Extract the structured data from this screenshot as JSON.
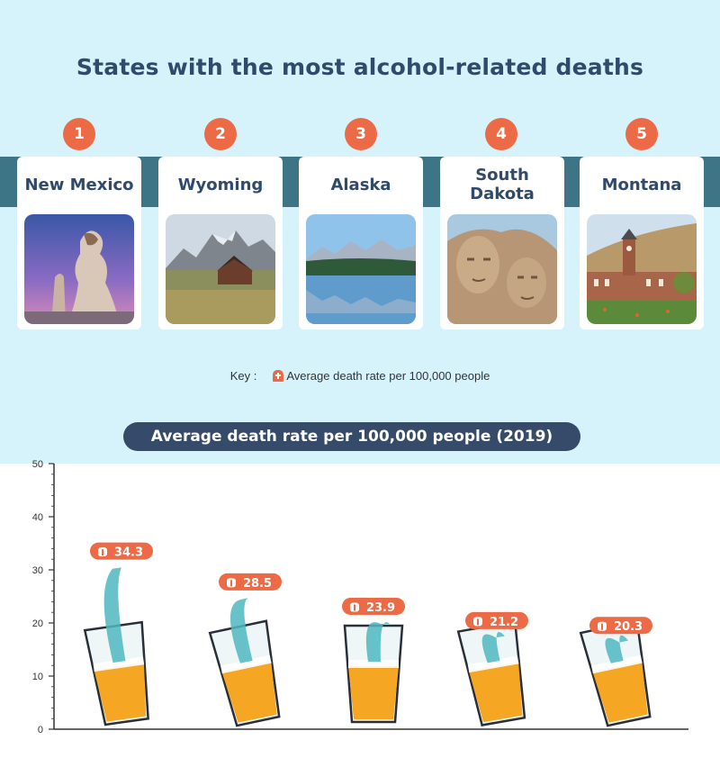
{
  "title": "States with the most alcohol-related deaths",
  "states": [
    {
      "rank": "1",
      "name": "New Mexico",
      "photo": "rock-formation-photo"
    },
    {
      "rank": "2",
      "name": "Wyoming",
      "photo": "barn-mountains-photo"
    },
    {
      "rank": "3",
      "name": "Alaska",
      "photo": "lake-reflection-photo"
    },
    {
      "rank": "4",
      "name": "South Dakota",
      "photo": "mount-rushmore-photo"
    },
    {
      "rank": "5",
      "name": "Montana",
      "photo": "university-building-photo"
    }
  ],
  "key": {
    "label": "Key :",
    "text": "Average death rate per 100,000 people",
    "icon": "tombstone-icon"
  },
  "colors": {
    "background": "#d6f3fb",
    "band": "#3e7586",
    "accent": "#ec6a45",
    "title": "#2f4a6a",
    "pill": "#364a69"
  },
  "chart_data": {
    "type": "bar",
    "title": "Average death rate per 100,000 people (2019)",
    "categories": [
      "New Mexico",
      "Wyoming",
      "Alaska",
      "South Dakota",
      "Montana"
    ],
    "values": [
      34.3,
      28.5,
      23.9,
      21.2,
      20.3
    ],
    "value_labels": [
      "34.3",
      "28.5",
      "23.9",
      "21.2",
      "20.3"
    ],
    "y_ticks": [
      "0",
      "10",
      "20",
      "30",
      "40",
      "50"
    ],
    "ylim": [
      0,
      50
    ],
    "xlabel": "",
    "ylabel": "",
    "grid": false,
    "mark_style": "beer glasses with liquid splash"
  }
}
